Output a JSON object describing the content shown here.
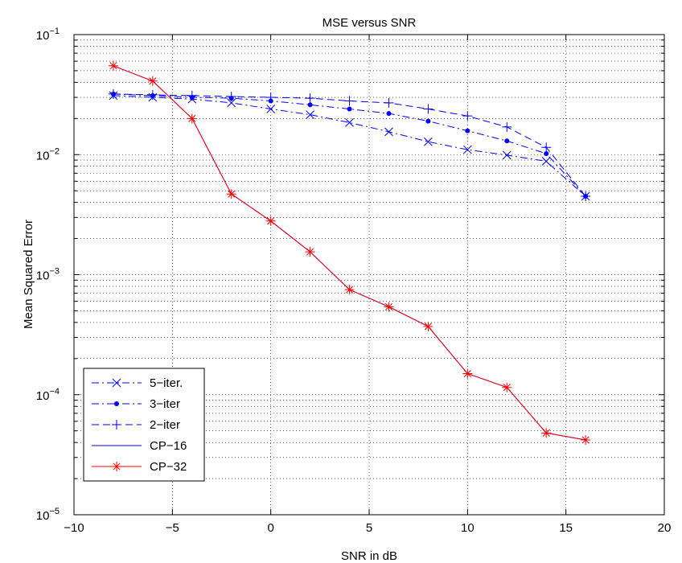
{
  "chart_data": {
    "type": "line",
    "title": "MSE versus SNR",
    "xlabel": "SNR in dB",
    "ylabel": "Mean Squared Error",
    "xlim": [
      -10,
      20
    ],
    "ylim": [
      1e-05,
      0.1
    ],
    "yscale": "log",
    "grid": true,
    "legend_position": "bottom-left",
    "x_ticks": [
      "−10",
      "−5",
      "0",
      "5",
      "10",
      "15",
      "20"
    ],
    "y_ticks": [
      {
        "base": "10",
        "exp": "−5"
      },
      {
        "base": "10",
        "exp": "−4"
      },
      {
        "base": "10",
        "exp": "−3"
      },
      {
        "base": "10",
        "exp": "−2"
      },
      {
        "base": "10",
        "exp": "−1"
      }
    ],
    "series": [
      {
        "name": "5−iter.",
        "color": "#0000ff",
        "line_style": "dashdot",
        "marker": "x",
        "x": [
          -8,
          -6,
          -4,
          -2,
          0,
          2,
          4,
          6,
          8,
          10,
          12,
          14,
          16
        ],
        "y": [
          0.031,
          0.03,
          0.029,
          0.027,
          0.024,
          0.0215,
          0.0185,
          0.0155,
          0.0128,
          0.011,
          0.0099,
          0.0088,
          0.0045
        ]
      },
      {
        "name": "3−iter",
        "color": "#0000ff",
        "line_style": "dashdot",
        "marker": "dot",
        "x": [
          -8,
          -6,
          -4,
          -2,
          0,
          2,
          4,
          6,
          8,
          10,
          12,
          14,
          16
        ],
        "y": [
          0.032,
          0.031,
          0.03,
          0.0295,
          0.028,
          0.026,
          0.024,
          0.022,
          0.019,
          0.0158,
          0.013,
          0.0102,
          0.0045
        ]
      },
      {
        "name": "2−iter",
        "color": "#0000ff",
        "line_style": "dashed",
        "marker": "plus",
        "x": [
          -8,
          -6,
          -4,
          -2,
          0,
          2,
          4,
          6,
          8,
          10,
          12,
          14,
          16
        ],
        "y": [
          0.032,
          0.0315,
          0.031,
          0.0305,
          0.03,
          0.0295,
          0.028,
          0.027,
          0.024,
          0.021,
          0.017,
          0.0115,
          0.0045
        ]
      },
      {
        "name": "CP−16",
        "color": "#0000ff",
        "line_style": "solid",
        "marker": "none",
        "x": [
          -8,
          -6,
          -4,
          -2,
          0,
          2,
          4,
          6,
          8,
          10,
          12,
          14,
          16
        ],
        "y": [
          0.055,
          0.041,
          0.02,
          0.0047,
          0.0028,
          0.00155,
          0.00075,
          0.00054,
          0.00037,
          0.00015,
          0.000115,
          4.8e-05,
          4.2e-05
        ]
      },
      {
        "name": "CP−32",
        "color": "#ff0000",
        "line_style": "solid",
        "marker": "star",
        "x": [
          -8,
          -6,
          -4,
          -2,
          0,
          2,
          4,
          6,
          8,
          10,
          12,
          14,
          16
        ],
        "y": [
          0.055,
          0.041,
          0.02,
          0.0047,
          0.0028,
          0.00155,
          0.00075,
          0.00054,
          0.00037,
          0.00015,
          0.000115,
          4.8e-05,
          4.2e-05
        ]
      }
    ]
  }
}
